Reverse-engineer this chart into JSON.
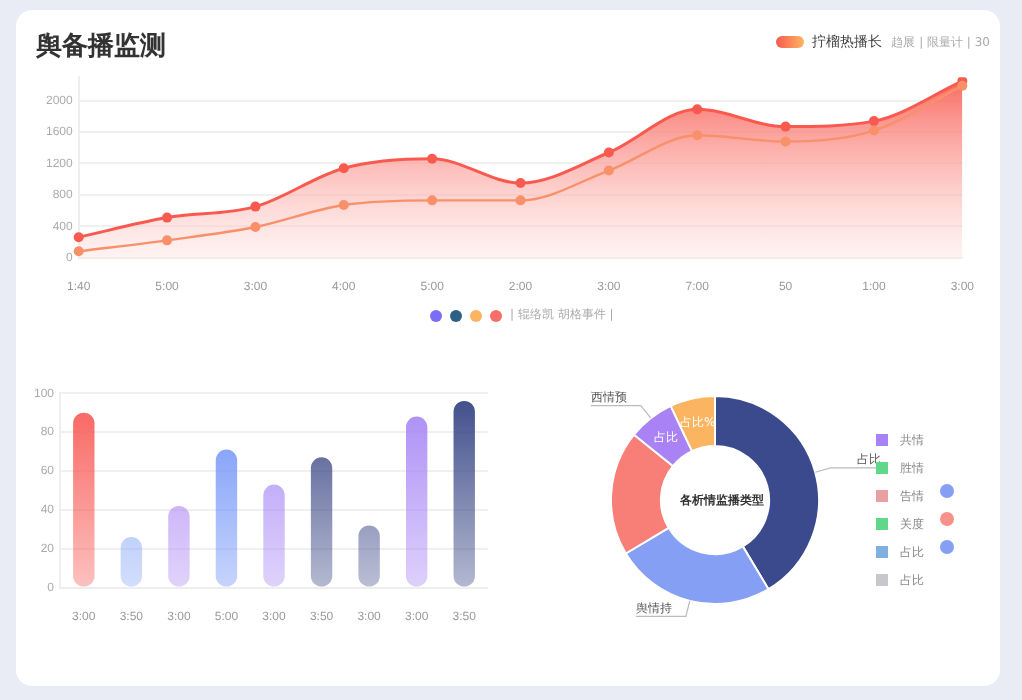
{
  "chart_data": [
    {
      "type": "line",
      "title": "舆备播监测",
      "categories": [
        "1:40",
        "5:00",
        "3:00",
        "4:00",
        "5:00",
        "2:00",
        "3:00",
        "7:00",
        "50",
        "1:00",
        "3:00"
      ],
      "ylim": [
        0,
        2300
      ],
      "yticks": [
        0,
        400,
        800,
        1200,
        1600,
        2000
      ],
      "grid": "y",
      "legend": "top right",
      "marker": "circle",
      "series": [
        {
          "type": "area",
          "name": "拧榴热播长",
          "color": "#f85a50",
          "values": [
            260,
            510,
            650,
            1140,
            1260,
            950,
            1340,
            1890,
            1670,
            1740,
            2250
          ]
        },
        {
          "type": "line",
          "color": "#f8906a",
          "values": [
            80,
            220,
            390,
            670,
            730,
            730,
            1110,
            1560,
            1480,
            1620,
            2190
          ]
        }
      ],
      "annotations": [
        "趋展 | 限量计 | 30",
        "| 辊络凯  胡格事件 |"
      ]
    },
    {
      "type": "bar",
      "categories": [
        "3:00",
        "3:50",
        "3:00",
        "5:00",
        "3:00",
        "3:50",
        "3:00",
        "3:00",
        "3:50"
      ],
      "values": [
        90,
        26,
        42,
        71,
        53,
        67,
        32,
        88,
        96
      ],
      "colors": [
        "#f85a55",
        "#8aa8f8",
        "#b08af5",
        "#6a8ef8",
        "#a98af5",
        "#3a4785",
        "#4a5590",
        "#a685f5",
        "#364584"
      ],
      "ylim": [
        0,
        100
      ],
      "yticks": [
        0,
        20,
        40,
        60,
        80,
        100
      ],
      "grid": "y"
    },
    {
      "type": "donut",
      "title": "各析情监播类型",
      "categories": [
        "占比",
        "舆情持",
        null,
        "西情预",
        null
      ],
      "values": [
        41.4,
        25,
        19.4,
        7.2,
        7
      ],
      "colors": [
        "#3b4a8c",
        "#859ff5",
        "#f77f78",
        "#a982f5",
        "#fbb561"
      ],
      "value_labels": [
        null,
        null,
        null,
        "占比",
        "占比%"
      ],
      "annotations": [
        "共情",
        "胜情",
        "告情",
        "关度",
        "占比",
        "占比"
      ]
    }
  ]
}
